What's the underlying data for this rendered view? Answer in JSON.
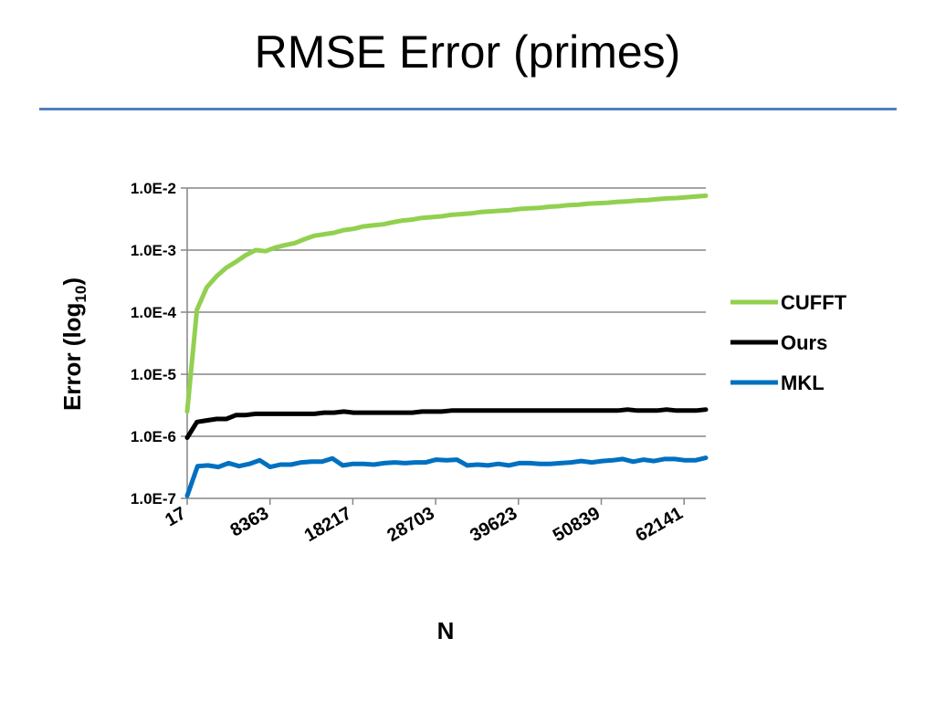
{
  "slide": {
    "title": "RMSE Error (primes)"
  },
  "colors": {
    "title_rule": "#4f81bd",
    "gridline": "#868686"
  },
  "chart_data": {
    "type": "line",
    "title": "",
    "xlabel": "N",
    "ylabel": "Error (log10)",
    "ylabel_main": "Error (log",
    "ylabel_sub": "10",
    "ylabel_tail": ")",
    "y_scale": "log",
    "ylim": [
      1e-07,
      0.01
    ],
    "y_ticks": [
      {
        "value": 1e-07,
        "label": "1.0E-7"
      },
      {
        "value": 1e-06,
        "label": "1.0E-6"
      },
      {
        "value": 1e-05,
        "label": "1.0E-5"
      },
      {
        "value": 0.0001,
        "label": "1.0E-4"
      },
      {
        "value": 0.001,
        "label": "1.0E-3"
      },
      {
        "value": 0.01,
        "label": "1.0E-2"
      }
    ],
    "x_tick_labels": [
      "17",
      "8363",
      "18217",
      "28703",
      "39623",
      "50839",
      "62141"
    ],
    "grid": "horizontal",
    "legend_position": "right",
    "series": [
      {
        "name": "CUFFT",
        "color": "#92d050",
        "values": [
          2.5e-06,
          0.00011,
          0.00025,
          0.00038,
          0.00052,
          0.00065,
          0.00083,
          0.001,
          0.00096,
          0.0011,
          0.0012,
          0.0013,
          0.0015,
          0.0017,
          0.0018,
          0.0019,
          0.0021,
          0.0022,
          0.0024,
          0.0025,
          0.0026,
          0.0028,
          0.003,
          0.0031,
          0.0033,
          0.0034,
          0.0035,
          0.0037,
          0.0038,
          0.0039,
          0.0041,
          0.0042,
          0.0043,
          0.0044,
          0.0046,
          0.0047,
          0.0048,
          0.005,
          0.0051,
          0.0053,
          0.0054,
          0.0056,
          0.0057,
          0.0058,
          0.006,
          0.0061,
          0.0063,
          0.0064,
          0.0066,
          0.0068,
          0.0069,
          0.0071,
          0.0073,
          0.0075
        ]
      },
      {
        "name": "Ours",
        "color": "#000000",
        "values": [
          9.5e-07,
          1.7e-06,
          1.8e-06,
          1.9e-06,
          1.9e-06,
          2.2e-06,
          2.2e-06,
          2.3e-06,
          2.3e-06,
          2.3e-06,
          2.3e-06,
          2.3e-06,
          2.3e-06,
          2.3e-06,
          2.4e-06,
          2.4e-06,
          2.5e-06,
          2.4e-06,
          2.4e-06,
          2.4e-06,
          2.4e-06,
          2.4e-06,
          2.4e-06,
          2.4e-06,
          2.5e-06,
          2.5e-06,
          2.5e-06,
          2.6e-06,
          2.6e-06,
          2.6e-06,
          2.6e-06,
          2.6e-06,
          2.6e-06,
          2.6e-06,
          2.6e-06,
          2.6e-06,
          2.6e-06,
          2.6e-06,
          2.6e-06,
          2.6e-06,
          2.6e-06,
          2.6e-06,
          2.6e-06,
          2.6e-06,
          2.6e-06,
          2.7e-06,
          2.6e-06,
          2.6e-06,
          2.6e-06,
          2.7e-06,
          2.6e-06,
          2.6e-06,
          2.6e-06,
          2.7e-06
        ]
      },
      {
        "name": "MKL",
        "color": "#0070c0",
        "values": [
          1.1e-07,
          3.3e-07,
          3.4e-07,
          3.2e-07,
          3.7e-07,
          3.3e-07,
          3.6e-07,
          4.1e-07,
          3.2e-07,
          3.5e-07,
          3.5e-07,
          3.8e-07,
          3.9e-07,
          3.9e-07,
          4.4e-07,
          3.4e-07,
          3.6e-07,
          3.6e-07,
          3.5e-07,
          3.7e-07,
          3.8e-07,
          3.7e-07,
          3.8e-07,
          3.8e-07,
          4.2e-07,
          4.1e-07,
          4.2e-07,
          3.4e-07,
          3.5e-07,
          3.4e-07,
          3.6e-07,
          3.4e-07,
          3.7e-07,
          3.7e-07,
          3.6e-07,
          3.6e-07,
          3.7e-07,
          3.8e-07,
          4e-07,
          3.8e-07,
          4e-07,
          4.1e-07,
          4.3e-07,
          3.9e-07,
          4.2e-07,
          4e-07,
          4.3e-07,
          4.3e-07,
          4.1e-07,
          4.1e-07,
          4.5e-07
        ]
      }
    ]
  }
}
